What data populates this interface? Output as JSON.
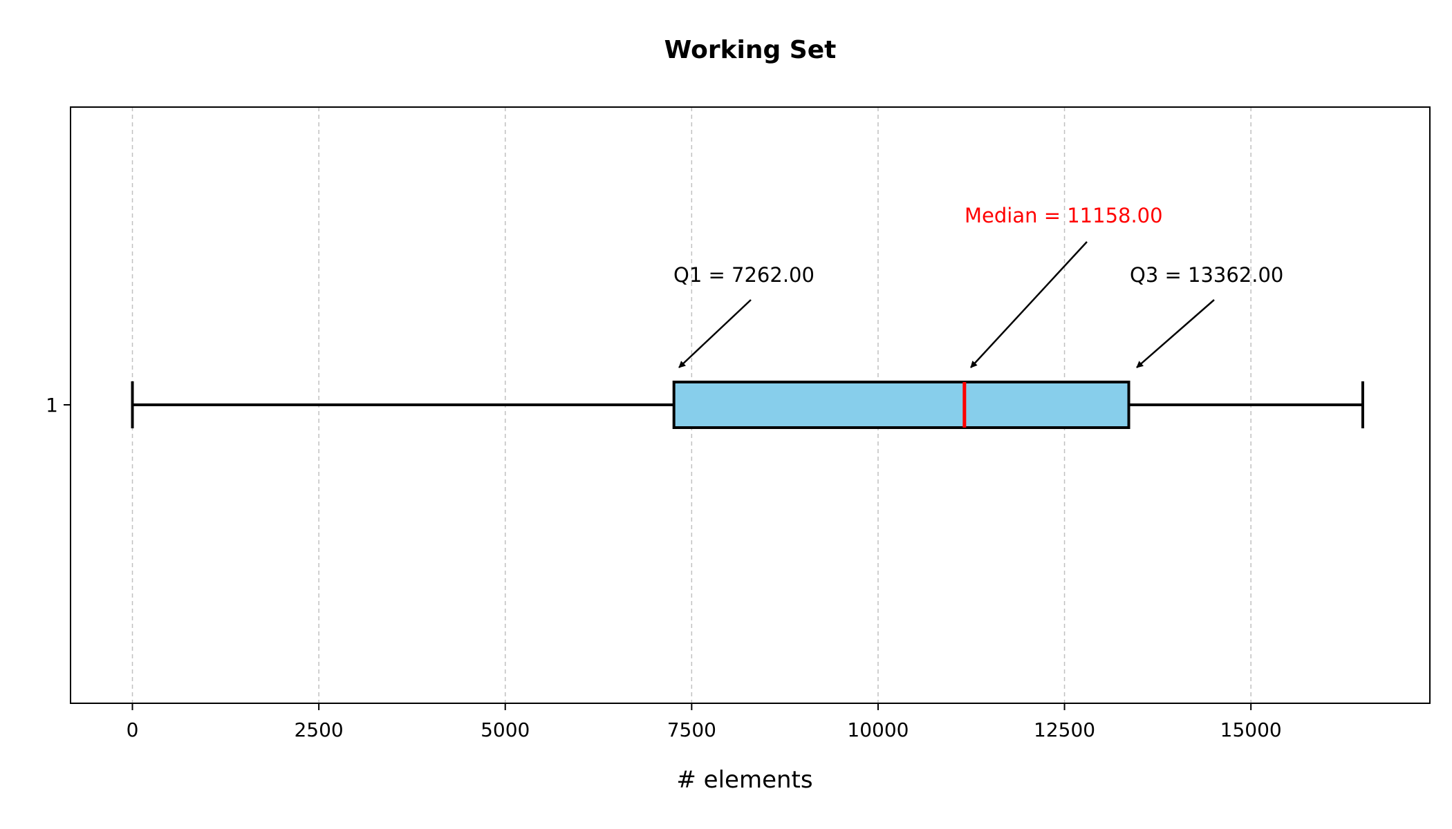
{
  "chart_data": {
    "type": "box",
    "title": "Working Set",
    "xlabel": "# elements",
    "ylabel": "",
    "orientation": "horizontal",
    "xlim": [
      -830,
      17400
    ],
    "x_ticks": [
      0,
      2500,
      5000,
      7500,
      10000,
      12500,
      15000
    ],
    "x_tick_labels": [
      "0",
      "2500",
      "5000",
      "7500",
      "10000",
      "12500",
      "15000"
    ],
    "y_ticks": [
      "1"
    ],
    "grid": {
      "axis": "x",
      "style": "dashed"
    },
    "box": {
      "category": "1",
      "whisker_low": 0,
      "q1": 7262,
      "median": 11158,
      "q3": 13362,
      "whisker_high": 16500
    },
    "colors": {
      "box_fill": "#87ceeb",
      "median_line": "#ff0000",
      "edge": "#000000",
      "grid": "#c0c0c0"
    },
    "annotations": [
      {
        "name": "q1",
        "text": "Q1 = 7262.00",
        "x": 7262,
        "color": "#000000"
      },
      {
        "name": "median",
        "text": "Median = 11158.00",
        "x": 11158,
        "color": "#ff0000"
      },
      {
        "name": "q3",
        "text": "Q3 = 13362.00",
        "x": 13362,
        "color": "#000000"
      }
    ]
  }
}
